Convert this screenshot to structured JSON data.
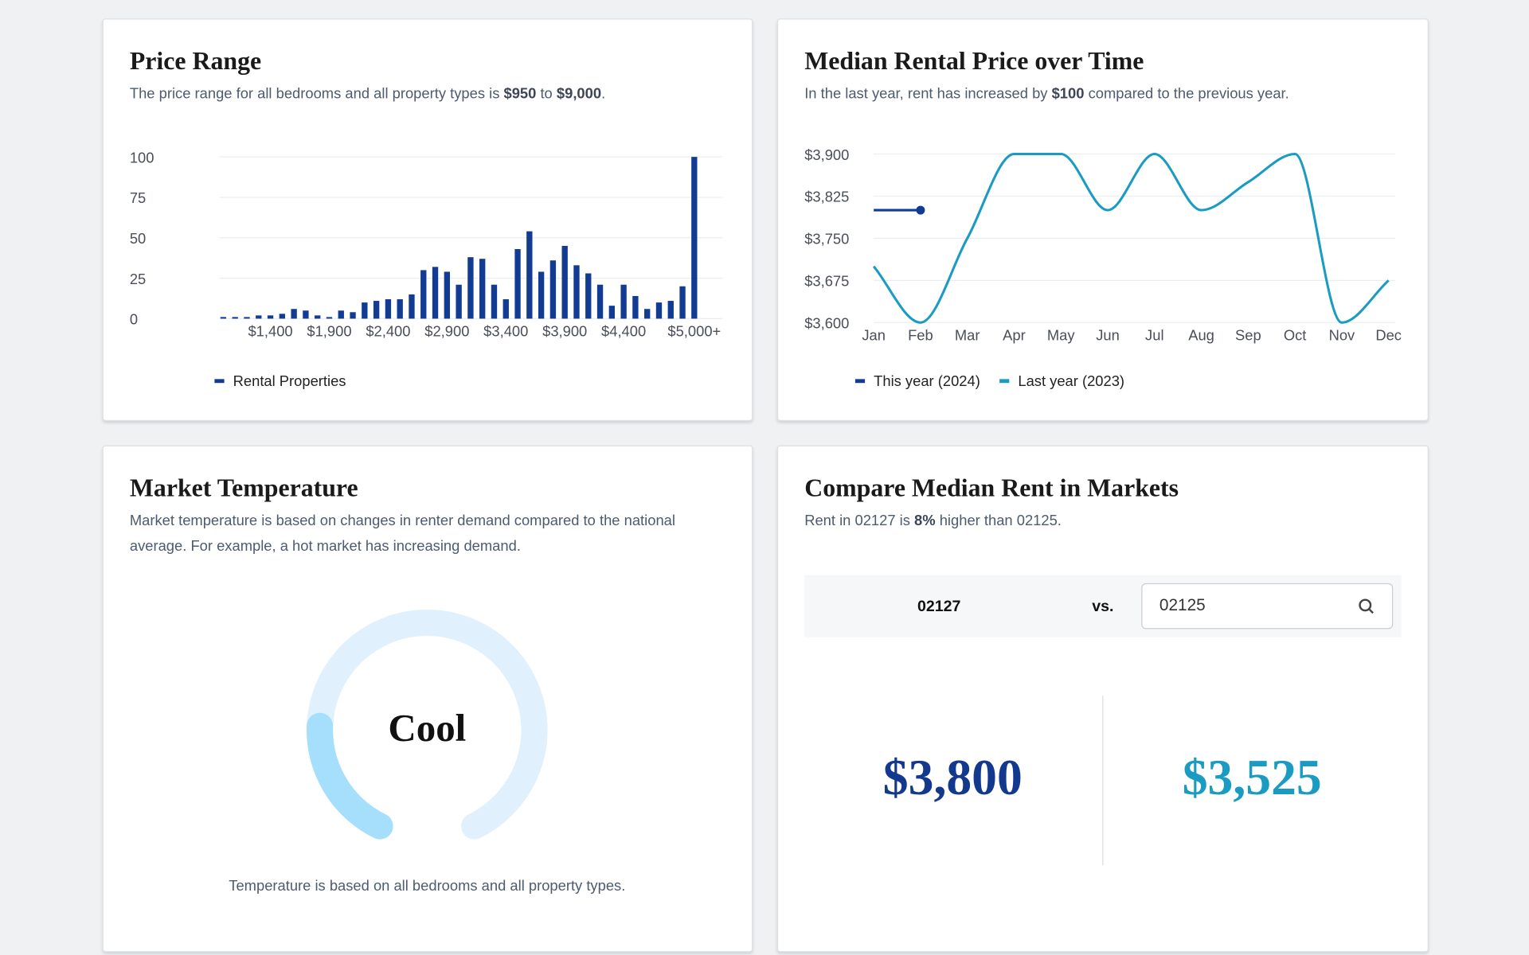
{
  "chart_data": [
    {
      "type": "bar",
      "title": "Price Range",
      "subtitle": [
        "The price range for all bedrooms and all property types is ",
        "$950",
        " to ",
        "$9,000",
        "."
      ],
      "categories": [
        null,
        null,
        null,
        null,
        "$1,400",
        null,
        null,
        null,
        null,
        "$1,900",
        null,
        null,
        null,
        null,
        "$2,400",
        null,
        null,
        null,
        null,
        "$2,900",
        null,
        null,
        null,
        null,
        "$3,400",
        null,
        null,
        null,
        null,
        "$3,900",
        null,
        null,
        null,
        null,
        "$4,400",
        null,
        null,
        null,
        null,
        null,
        "$5,000+"
      ],
      "series": [
        {
          "name": "Rental Properties",
          "color": "#123c93",
          "values": [
            1,
            1,
            1,
            2,
            2,
            3,
            6,
            5,
            2,
            1,
            5,
            4,
            10,
            11,
            12,
            12,
            15,
            30,
            32,
            29,
            21,
            38,
            37,
            21,
            12,
            43,
            54,
            29,
            36,
            45,
            33,
            28,
            21,
            8,
            21,
            14,
            6,
            10,
            11,
            20,
            100
          ]
        }
      ],
      "ylim": [
        0,
        100
      ],
      "yticks": [
        0,
        25,
        50,
        75,
        100
      ],
      "grid": true
    },
    {
      "type": "line",
      "title": "Median Rental Price over Time",
      "subtitle": [
        "In the last year, rent has increased by ",
        "$100",
        " compared to the previous year."
      ],
      "categories": [
        "Jan",
        "Feb",
        "Mar",
        "Apr",
        "May",
        "Jun",
        "Jul",
        "Aug",
        "Sep",
        "Oct",
        "Nov",
        "Dec"
      ],
      "series": [
        {
          "name": "This year (2024)",
          "color": "#123c93",
          "values": [
            3800,
            3800,
            null,
            null,
            null,
            null,
            null,
            null,
            null,
            null,
            null,
            null
          ]
        },
        {
          "name": "Last year (2023)",
          "color": "#1a9bc2",
          "values": [
            3700,
            3600,
            3750,
            3900,
            3900,
            3800,
            3900,
            3800,
            3850,
            3900,
            3600,
            3675
          ]
        }
      ],
      "ylim": [
        3600,
        3900
      ],
      "yticks": [
        {
          "value": 3600,
          "label": "$3,600"
        },
        {
          "value": 3675,
          "label": "$3,675"
        },
        {
          "value": 3750,
          "label": "$3,750"
        },
        {
          "value": 3825,
          "label": "$3,825"
        },
        {
          "value": 3900,
          "label": "$3,900"
        }
      ],
      "grid": true
    }
  ],
  "market_temperature": {
    "title": "Market Temperature",
    "description": "Market temperature is based on changes in renter demand compared to the national average. For example, a hot market has increasing demand.",
    "level": "Cool",
    "footnote": "Temperature is based on all bedrooms and all property types."
  },
  "compare": {
    "title": "Compare Median Rent in Markets",
    "subtitle": [
      "Rent in 02127 is ",
      "8%",
      " higher than 02125."
    ],
    "market_a": "02127",
    "vs": "vs.",
    "market_b": "02125",
    "price_a": "$3,800",
    "price_b": "$3,525"
  }
}
